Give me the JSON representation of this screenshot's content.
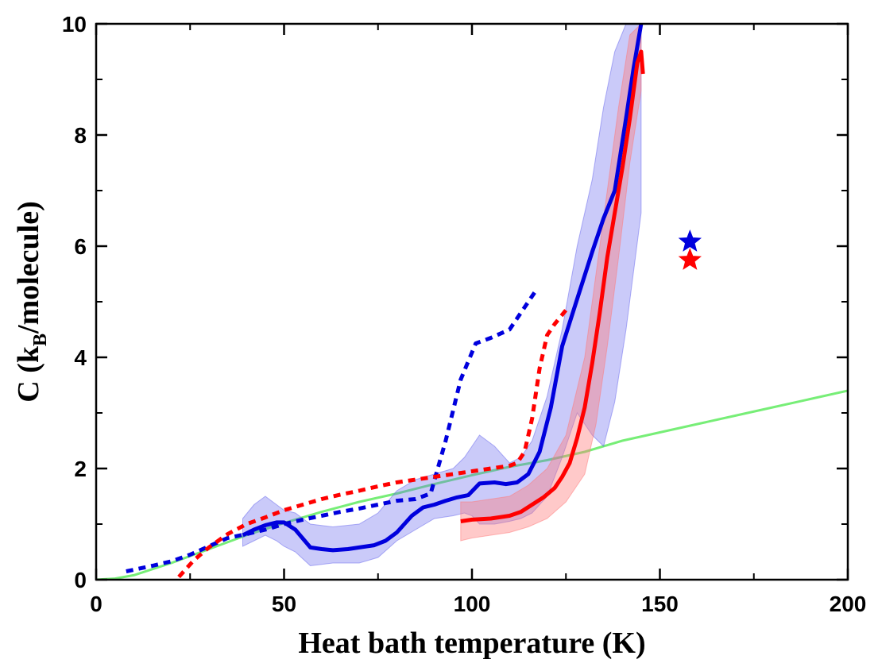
{
  "chart_data": {
    "type": "line",
    "xlabel": "Heat bath temperature (K)",
    "ylabel_main": "C (k",
    "ylabel_sub": "B",
    "ylabel_tail": "/molecule)",
    "xlim": [
      0,
      200
    ],
    "ylim": [
      0,
      10
    ],
    "xticks": [
      "0",
      "50",
      "100",
      "150",
      "200"
    ],
    "yticks": [
      "0",
      "2",
      "4",
      "6",
      "8",
      "10"
    ],
    "grid": false,
    "colors": {
      "blue": "#0000dd",
      "red": "#ff0000",
      "green": "#77ee77",
      "blue_band": "#6666ee",
      "red_band": "#ff7777"
    },
    "series": [
      {
        "style": "green-solid",
        "x": [
          0,
          5,
          10,
          20,
          30,
          40,
          50,
          60,
          70,
          80,
          90,
          100,
          110,
          120,
          130,
          140,
          150,
          160,
          170,
          180,
          190,
          200
        ],
        "y": [
          0,
          0.02,
          0.08,
          0.3,
          0.55,
          0.8,
          1.02,
          1.22,
          1.4,
          1.55,
          1.72,
          1.88,
          2.03,
          2.15,
          2.3,
          2.5,
          2.65,
          2.8,
          2.95,
          3.1,
          3.25,
          3.4
        ]
      },
      {
        "style": "blue-band",
        "x": [
          39,
          42,
          45,
          48,
          50,
          53,
          57,
          63,
          70,
          75,
          80,
          85,
          90,
          95,
          98,
          100,
          102,
          106,
          110,
          113,
          116,
          120,
          124,
          128,
          132,
          135,
          138,
          141,
          145
        ],
        "upper": [
          1.1,
          1.35,
          1.5,
          1.35,
          1.25,
          1.2,
          1.0,
          0.95,
          1.0,
          1.2,
          1.6,
          1.8,
          1.9,
          2.0,
          2.2,
          2.4,
          2.6,
          2.4,
          2.1,
          2.2,
          2.5,
          3.3,
          4.5,
          6.0,
          7.2,
          8.5,
          9.5,
          10.0,
          10.0
        ],
        "lower": [
          0.6,
          0.7,
          0.8,
          0.7,
          0.6,
          0.5,
          0.25,
          0.3,
          0.3,
          0.4,
          0.7,
          0.9,
          1.1,
          1.15,
          1.2,
          1.15,
          1.0,
          1.0,
          1.05,
          1.1,
          1.2,
          1.5,
          2.2,
          3.0,
          2.6,
          2.4,
          3.2,
          4.5,
          6.6
        ]
      },
      {
        "style": "red-band",
        "x": [
          97,
          100,
          105,
          110,
          115,
          120,
          125,
          130,
          133,
          136,
          139,
          142,
          145
        ],
        "upper": [
          1.4,
          1.4,
          1.45,
          1.5,
          1.7,
          2.0,
          2.6,
          4.0,
          5.5,
          7.0,
          8.5,
          9.8,
          10.0
        ],
        "lower": [
          0.7,
          0.75,
          0.8,
          0.85,
          0.95,
          1.1,
          1.4,
          1.9,
          2.8,
          4.2,
          5.8,
          7.5,
          8.8
        ]
      },
      {
        "style": "blue-dotted",
        "x": [
          8,
          15,
          20,
          25,
          30,
          35,
          40,
          45,
          50,
          55,
          60,
          65,
          70,
          75,
          80,
          85,
          89,
          93,
          97,
          101,
          105,
          110,
          113,
          117
        ],
        "y": [
          0.15,
          0.25,
          0.33,
          0.45,
          0.6,
          0.75,
          0.82,
          0.9,
          1.0,
          1.08,
          1.15,
          1.22,
          1.28,
          1.35,
          1.42,
          1.45,
          1.55,
          2.5,
          3.6,
          4.25,
          4.35,
          4.5,
          4.8,
          5.2
        ]
      },
      {
        "style": "red-dotted",
        "x": [
          22,
          26,
          30,
          35,
          40,
          45,
          50,
          55,
          60,
          65,
          70,
          75,
          80,
          85,
          90,
          95,
          100,
          105,
          110,
          112,
          114,
          116,
          118,
          120,
          122,
          125
        ],
        "y": [
          0.05,
          0.35,
          0.58,
          0.82,
          1.0,
          1.12,
          1.25,
          1.35,
          1.45,
          1.53,
          1.6,
          1.68,
          1.75,
          1.8,
          1.85,
          1.9,
          1.95,
          2.0,
          2.05,
          2.1,
          2.3,
          2.9,
          3.8,
          4.4,
          4.6,
          4.85
        ]
      },
      {
        "style": "blue-solid",
        "x": [
          39,
          42,
          45,
          48,
          50,
          53,
          57,
          60,
          63,
          67,
          70,
          74,
          77,
          80,
          84,
          87,
          90,
          93,
          96,
          99,
          102,
          106,
          109,
          112,
          115,
          118,
          121,
          124,
          128,
          132,
          135,
          138,
          141,
          143,
          145
        ],
        "y": [
          0.8,
          0.9,
          0.98,
          1.03,
          1.03,
          0.9,
          0.58,
          0.55,
          0.53,
          0.55,
          0.58,
          0.62,
          0.7,
          0.85,
          1.15,
          1.3,
          1.35,
          1.42,
          1.48,
          1.52,
          1.73,
          1.75,
          1.72,
          1.75,
          1.9,
          2.3,
          3.1,
          4.2,
          5.05,
          5.9,
          6.5,
          7.0,
          8.3,
          9.2,
          10.0
        ]
      },
      {
        "style": "red-solid",
        "x": [
          97,
          100,
          105,
          110,
          113,
          116,
          119,
          122,
          124,
          126,
          128,
          130,
          132,
          134,
          136,
          138,
          140,
          142,
          144,
          145,
          145.5
        ],
        "y": [
          1.05,
          1.08,
          1.1,
          1.15,
          1.22,
          1.35,
          1.48,
          1.65,
          1.85,
          2.1,
          2.55,
          3.1,
          3.9,
          4.8,
          5.8,
          6.6,
          7.4,
          8.3,
          9.3,
          9.5,
          9.1
        ]
      }
    ],
    "stars": [
      {
        "color": "blue",
        "x": 158,
        "y": 6.08
      },
      {
        "color": "red",
        "x": 158,
        "y": 5.75
      }
    ]
  }
}
